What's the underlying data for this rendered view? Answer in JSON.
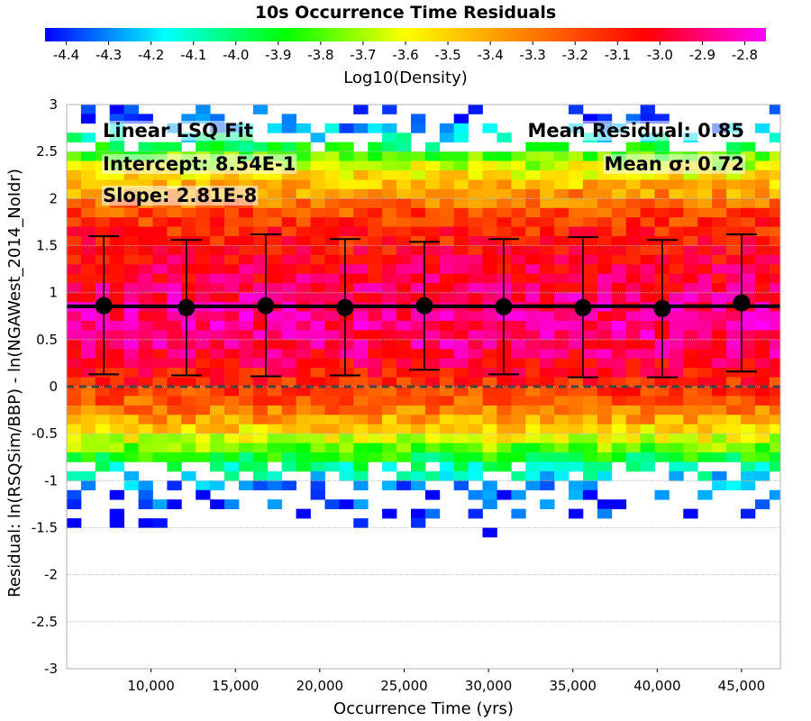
{
  "chart_data": {
    "type": "heatmap",
    "title": "10s Occurrence Time Residuals",
    "colorbar": {
      "label": "Log10(Density)",
      "range": [
        -4.45,
        -2.75
      ],
      "ticks": [
        -4.4,
        -4.3,
        -4.2,
        -4.1,
        -4.0,
        -3.9,
        -3.8,
        -3.7,
        -3.6,
        -3.5,
        -3.4,
        -3.3,
        -3.2,
        -3.1,
        -3.0,
        -2.9,
        -2.8
      ],
      "tick_labels": [
        "-4.4",
        "-4.3",
        "-4.2",
        "-4.1",
        "-4.0",
        "-3.9",
        "-3.8",
        "-3.7",
        "-3.6",
        "-3.5",
        "-3.4",
        "-3.3",
        "-3.2",
        "-3.1",
        "-3.0",
        "-2.9",
        "-2.8"
      ],
      "colors": [
        "#0000ff",
        "#00ffff",
        "#00ff00",
        "#ffff00",
        "#ff8000",
        "#ff0000",
        "#ff00ff"
      ]
    },
    "xlabel": "Occurrence Time (yrs)",
    "ylabel": "Residual: ln(RSQSim/BBP) - ln(NGAWest_2014_NoIdr)",
    "xlim": [
      5000,
      47300
    ],
    "ylim": [
      -3,
      3
    ],
    "xticks": [
      10000,
      15000,
      20000,
      25000,
      30000,
      35000,
      40000,
      45000
    ],
    "xtick_labels": [
      "10,000",
      "15,000",
      "20,000",
      "25,000",
      "30,000",
      "35,000",
      "40,000",
      "45,000"
    ],
    "yticks": [
      3,
      2.5,
      2,
      1.5,
      1,
      0.5,
      0,
      -0.5,
      -1,
      -1.5,
      -2,
      -2.5,
      -3
    ],
    "ytick_labels": [
      "3",
      "2.5",
      "2",
      "1.5",
      "1",
      "0.5",
      "0",
      "-0.5",
      "-1",
      "-1.5",
      "-2",
      "-2.5",
      "-3"
    ],
    "grid": true,
    "heatmap": {
      "x_start": 5000,
      "x_bin_width": 850,
      "n_x_bins": 50,
      "y_bin_height": 0.1,
      "density_profile": [
        {
          "y": 2.9,
          "value": -4.4
        },
        {
          "y": 2.7,
          "value": -4.2
        },
        {
          "y": 2.4,
          "value": -3.7
        },
        {
          "y": 2.1,
          "value": -3.4
        },
        {
          "y": 1.8,
          "value": -3.15
        },
        {
          "y": 1.3,
          "value": -3.0
        },
        {
          "y": 0.8,
          "value": -2.88
        },
        {
          "y": 0.4,
          "value": -2.92
        },
        {
          "y": 0.1,
          "value": -3.08
        },
        {
          "y": -0.2,
          "value": -3.25
        },
        {
          "y": -0.5,
          "value": -3.55
        },
        {
          "y": -0.7,
          "value": -3.85
        },
        {
          "y": -0.9,
          "value": -4.1
        },
        {
          "y": -1.1,
          "value": -4.35
        },
        {
          "y": -1.4,
          "value": -4.45
        }
      ]
    },
    "series": [
      {
        "kind": "binned_mean_with_sigma",
        "x": [
          7200,
          12100,
          16800,
          21500,
          26200,
          30900,
          35600,
          40300,
          45000
        ],
        "mean": [
          0.86,
          0.84,
          0.86,
          0.84,
          0.86,
          0.85,
          0.84,
          0.83,
          0.89
        ],
        "upper": [
          1.6,
          1.56,
          1.62,
          1.57,
          1.54,
          1.57,
          1.59,
          1.56,
          1.62
        ],
        "lower": [
          0.13,
          0.12,
          0.11,
          0.12,
          0.18,
          0.13,
          0.1,
          0.1,
          0.16
        ],
        "color": "#000000"
      },
      {
        "kind": "linear_fit",
        "intercept": 0.854,
        "slope": 2.81e-08,
        "color": "#000000"
      },
      {
        "kind": "zero_line",
        "y": 0,
        "color": "#444444"
      }
    ],
    "annotations": {
      "fit_title": "Linear LSQ Fit",
      "intercept": "Intercept: 8.54E-1",
      "slope": "Slope: 2.81E-8",
      "mean_residual": "Mean Residual: 0.85",
      "mean_sigma": "Mean σ: 0.72"
    }
  }
}
